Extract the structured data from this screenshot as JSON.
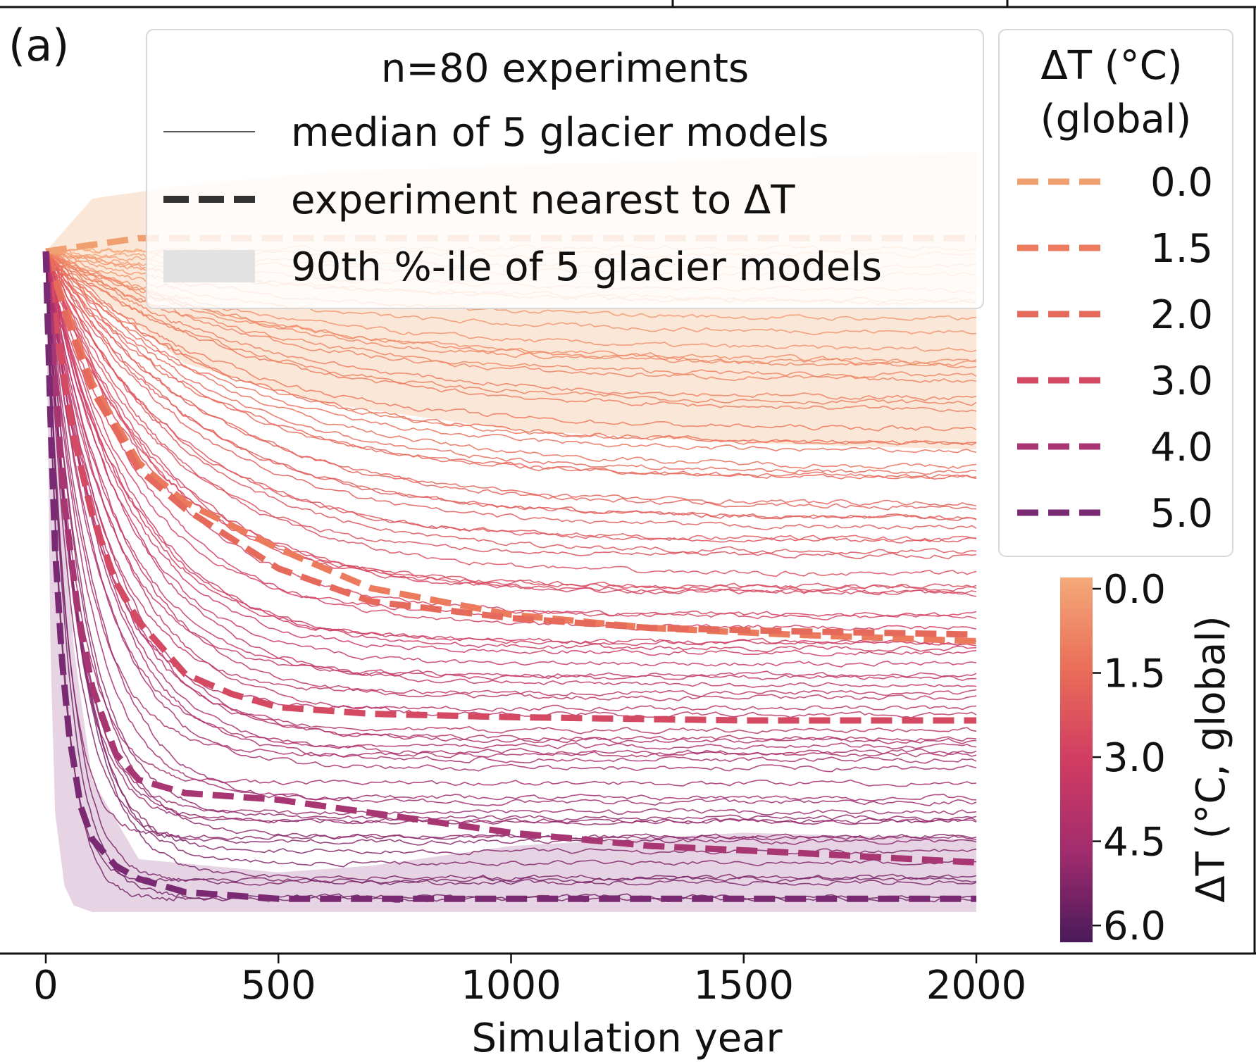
{
  "panel_label": "(a)",
  "chart_data": {
    "type": "line",
    "xlabel": "Simulation year",
    "ylabel": "",
    "xlim": [
      -100,
      2600
    ],
    "ylim": [
      0,
      1.05
    ],
    "x_ticks": [
      0,
      500,
      1000,
      1500,
      2000
    ],
    "x_tick_labels": [
      "0",
      "500",
      "1000",
      "1500",
      "2000"
    ],
    "y_ticks_shown": false,
    "n_experiments": 80,
    "legend": {
      "title": "n=80 experiments",
      "entries": [
        {
          "label": "median of 5 glacier models",
          "style": "thin-line"
        },
        {
          "label": "experiment nearest to ΔT",
          "style": "dashed-thick"
        },
        {
          "label": "90th %-ile of 5 glacier models",
          "style": "shaded-band"
        }
      ],
      "placement": "top-center"
    },
    "dt_legend": {
      "title_line1": "ΔT (°C)",
      "title_line2": "(global)",
      "placement": "top-right",
      "entries": [
        {
          "label": "0.0",
          "dt": 0.0,
          "color": "#f0a070"
        },
        {
          "label": "1.5",
          "dt": 1.5,
          "color": "#ec7a5c"
        },
        {
          "label": "2.0",
          "dt": 2.0,
          "color": "#e56a5c"
        },
        {
          "label": "3.0",
          "dt": 3.0,
          "color": "#d34a62"
        },
        {
          "label": "4.0",
          "dt": 4.0,
          "color": "#a83672"
        },
        {
          "label": "5.0",
          "dt": 5.0,
          "color": "#7a2a72"
        }
      ]
    },
    "colorbar": {
      "label": "ΔT (°C, global)",
      "ticks": [
        "0.0",
        "1.5",
        "3.0",
        "4.5",
        "6.0"
      ],
      "tick_values": [
        0.0,
        1.5,
        3.0,
        4.5,
        6.0
      ],
      "range": [
        0.0,
        6.5
      ],
      "colors": [
        "#f4a97a",
        "#ea6e58",
        "#d13c62",
        "#a22c6e",
        "#5a1f63"
      ]
    },
    "highlighted_series": [
      {
        "name": "0.0",
        "color": "#f0a070",
        "x": [
          0,
          50,
          100,
          200,
          300,
          500,
          700,
          1000,
          1500,
          2000
        ],
        "y": [
          1.0,
          1.005,
          1.01,
          1.02,
          1.02,
          1.02,
          1.02,
          1.02,
          1.02,
          1.02
        ]
      },
      {
        "name": "1.5",
        "color": "#ec7a5c",
        "x": [
          0,
          50,
          100,
          200,
          300,
          500,
          700,
          1000,
          1300,
          1600,
          2000
        ],
        "y": [
          1.0,
          0.9,
          0.8,
          0.68,
          0.62,
          0.55,
          0.49,
          0.45,
          0.43,
          0.42,
          0.41
        ]
      },
      {
        "name": "2.0",
        "color": "#e56a5c",
        "x": [
          0,
          50,
          100,
          200,
          300,
          500,
          700,
          1000,
          1300,
          1600,
          2000
        ],
        "y": [
          1.0,
          0.89,
          0.79,
          0.67,
          0.61,
          0.52,
          0.47,
          0.445,
          0.43,
          0.425,
          0.42
        ]
      },
      {
        "name": "3.0",
        "color": "#d34a62",
        "x": [
          0,
          30,
          60,
          100,
          150,
          200,
          300,
          400,
          500,
          700,
          1000,
          1500,
          2000
        ],
        "y": [
          1.0,
          0.85,
          0.72,
          0.6,
          0.5,
          0.44,
          0.36,
          0.33,
          0.31,
          0.3,
          0.295,
          0.29,
          0.29
        ]
      },
      {
        "name": "4.0",
        "color": "#a83672",
        "x": [
          0,
          20,
          40,
          70,
          100,
          150,
          200,
          300,
          500,
          700,
          1000,
          1300,
          1600,
          2000
        ],
        "y": [
          1.0,
          0.8,
          0.62,
          0.45,
          0.34,
          0.24,
          0.2,
          0.18,
          0.17,
          0.15,
          0.12,
          0.1,
          0.09,
          0.075
        ]
      },
      {
        "name": "5.0",
        "color": "#7a2a72",
        "x": [
          0,
          10,
          20,
          35,
          50,
          75,
          100,
          150,
          200,
          300,
          500,
          1000,
          2000
        ],
        "y": [
          1.0,
          0.75,
          0.55,
          0.38,
          0.27,
          0.16,
          0.11,
          0.07,
          0.05,
          0.03,
          0.02,
          0.02,
          0.02
        ]
      }
    ],
    "bands": [
      {
        "name": "0.0",
        "color": "#f6c9a6",
        "x": [
          0,
          100,
          300,
          600,
          1000,
          1500,
          2000
        ],
        "y_low": [
          1.0,
          0.94,
          0.83,
          0.77,
          0.73,
          0.71,
          0.7
        ],
        "y_high": [
          1.0,
          1.08,
          1.1,
          1.12,
          1.13,
          1.14,
          1.15
        ]
      },
      {
        "name": "5.0",
        "color": "#c8a0c6",
        "x": [
          0,
          10,
          20,
          40,
          60,
          100,
          200,
          500,
          700,
          1000,
          1500,
          2000
        ],
        "y_low": [
          1.0,
          0.4,
          0.15,
          0.04,
          0.01,
          0.0,
          0.0,
          0.0,
          0.0,
          0.0,
          0.0,
          0.0
        ],
        "y_high": [
          1.0,
          0.95,
          0.8,
          0.6,
          0.4,
          0.2,
          0.08,
          0.06,
          0.07,
          0.1,
          0.12,
          0.11
        ]
      }
    ],
    "experiment_family": {
      "count": 80,
      "dt_range": [
        0.0,
        6.0
      ],
      "final_level_range": [
        0.02,
        1.02
      ],
      "note_source": "thin lines, one per experiment"
    }
  }
}
